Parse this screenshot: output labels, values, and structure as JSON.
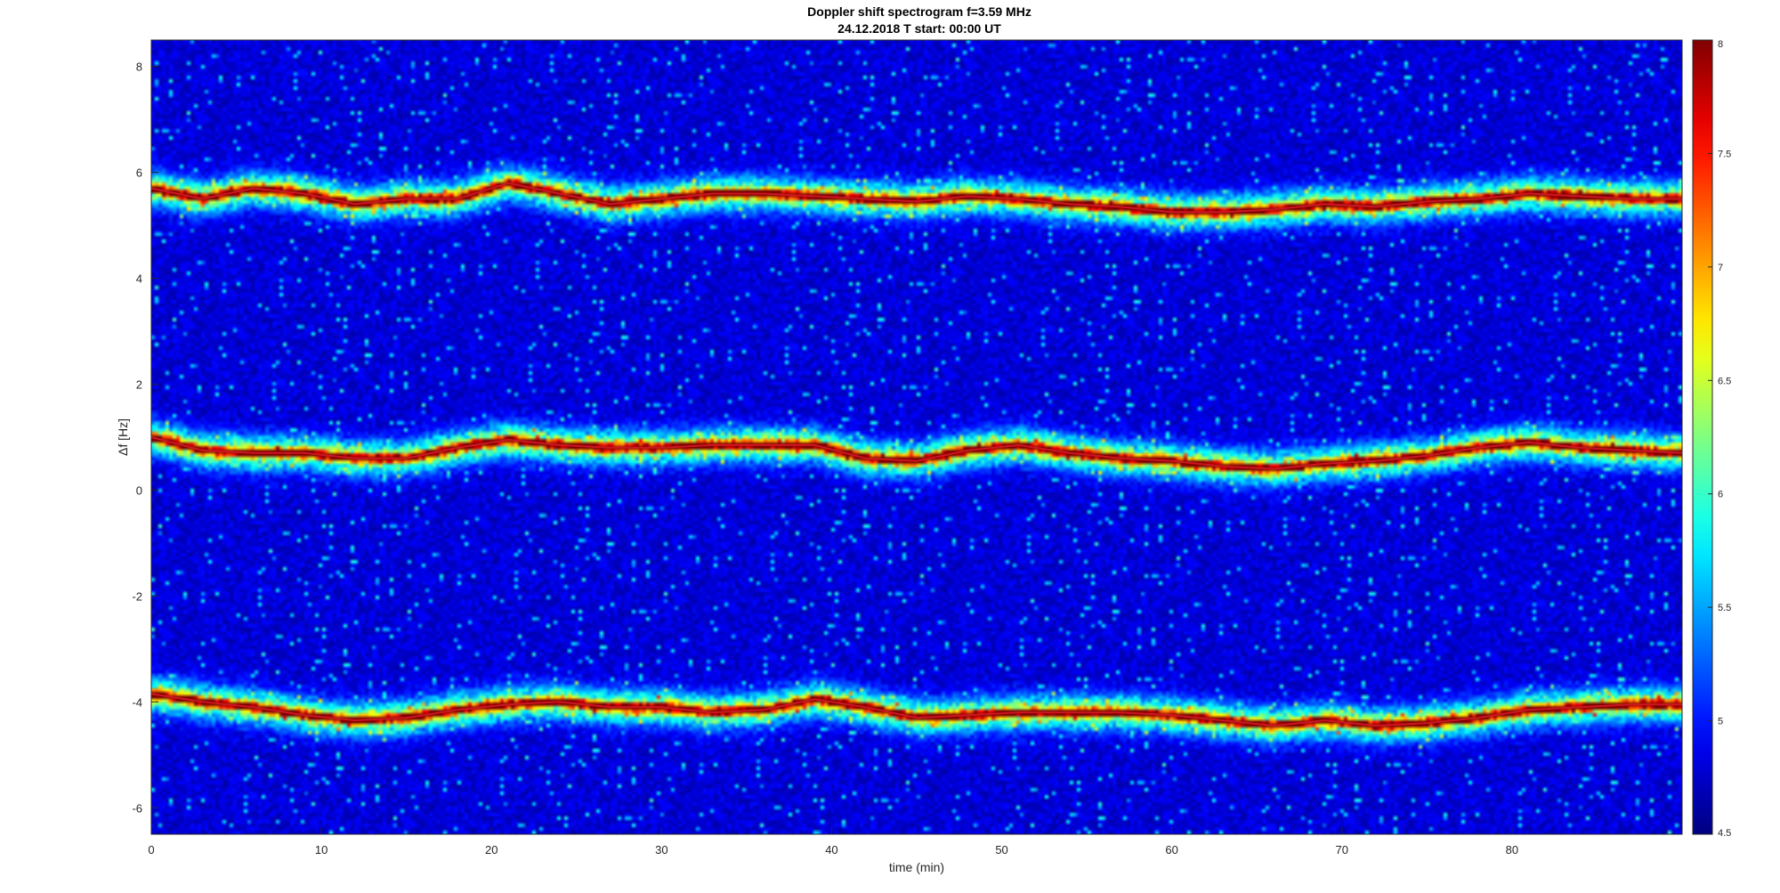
{
  "chart_data": {
    "type": "heatmap",
    "title": "Doppler shift spectrogram f=3.59 MHz",
    "subtitle": "24.12.2018   T start: 00:00 UT",
    "xlabel": "time (min)",
    "ylabel": "Δf [Hz]",
    "xlim": [
      0,
      90
    ],
    "ylim": [
      -6.5,
      8.5
    ],
    "xticks": [
      0,
      10,
      20,
      30,
      40,
      50,
      60,
      70,
      80
    ],
    "yticks": [
      -6,
      -4,
      -2,
      0,
      2,
      4,
      6,
      8
    ],
    "colormap": "jet",
    "clim": [
      4.5,
      8
    ],
    "colorbar_ticks": [
      4.5,
      5,
      5.5,
      6,
      6.5,
      7,
      7.5,
      8
    ],
    "background_level": 4.8,
    "series": [
      {
        "time_min": [
          0,
          3,
          6,
          9,
          12,
          15,
          18,
          21,
          24,
          27,
          30,
          33,
          36,
          39,
          42,
          45,
          48,
          51,
          54,
          57,
          60,
          63,
          66,
          69,
          72,
          75,
          78,
          81,
          84,
          87,
          90
        ],
        "doppler_hz": [
          5.7,
          5.5,
          5.7,
          5.6,
          5.4,
          5.5,
          5.5,
          5.8,
          5.6,
          5.4,
          5.5,
          5.6,
          5.6,
          5.55,
          5.5,
          5.45,
          5.55,
          5.5,
          5.4,
          5.35,
          5.25,
          5.25,
          5.3,
          5.4,
          5.35,
          5.45,
          5.5,
          5.6,
          5.55,
          5.5,
          5.5
        ]
      },
      {
        "time_min": [
          0,
          3,
          6,
          9,
          12,
          15,
          18,
          21,
          24,
          27,
          30,
          33,
          36,
          39,
          42,
          45,
          48,
          51,
          54,
          57,
          60,
          63,
          66,
          69,
          72,
          75,
          78,
          81,
          84,
          87,
          90
        ],
        "doppler_hz": [
          1.0,
          0.75,
          0.7,
          0.7,
          0.6,
          0.6,
          0.8,
          0.95,
          0.85,
          0.8,
          0.8,
          0.85,
          0.85,
          0.85,
          0.6,
          0.55,
          0.75,
          0.85,
          0.7,
          0.6,
          0.55,
          0.45,
          0.4,
          0.5,
          0.55,
          0.65,
          0.8,
          0.9,
          0.8,
          0.75,
          0.7
        ]
      },
      {
        "time_min": [
          0,
          3,
          6,
          9,
          12,
          15,
          18,
          21,
          24,
          27,
          30,
          33,
          36,
          39,
          42,
          45,
          48,
          51,
          54,
          57,
          60,
          63,
          66,
          69,
          72,
          75,
          78,
          81,
          84,
          87,
          90
        ],
        "doppler_hz": [
          -3.85,
          -4.0,
          -4.1,
          -4.25,
          -4.35,
          -4.3,
          -4.15,
          -4.05,
          -4.0,
          -4.1,
          -4.1,
          -4.2,
          -4.15,
          -3.95,
          -4.1,
          -4.3,
          -4.25,
          -4.2,
          -4.2,
          -4.2,
          -4.25,
          -4.35,
          -4.45,
          -4.35,
          -4.45,
          -4.4,
          -4.3,
          -4.15,
          -4.1,
          -4.05,
          -4.05
        ]
      }
    ]
  }
}
